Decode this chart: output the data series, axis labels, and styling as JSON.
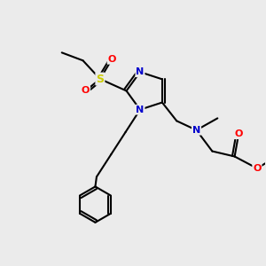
{
  "bg_color": "#ebebeb",
  "atom_colors": {
    "C": "#000000",
    "N": "#0000cc",
    "O": "#ff0000",
    "S": "#cccc00"
  },
  "bond_color": "#000000",
  "bond_width": 1.5,
  "font_size_atoms": 8.5
}
